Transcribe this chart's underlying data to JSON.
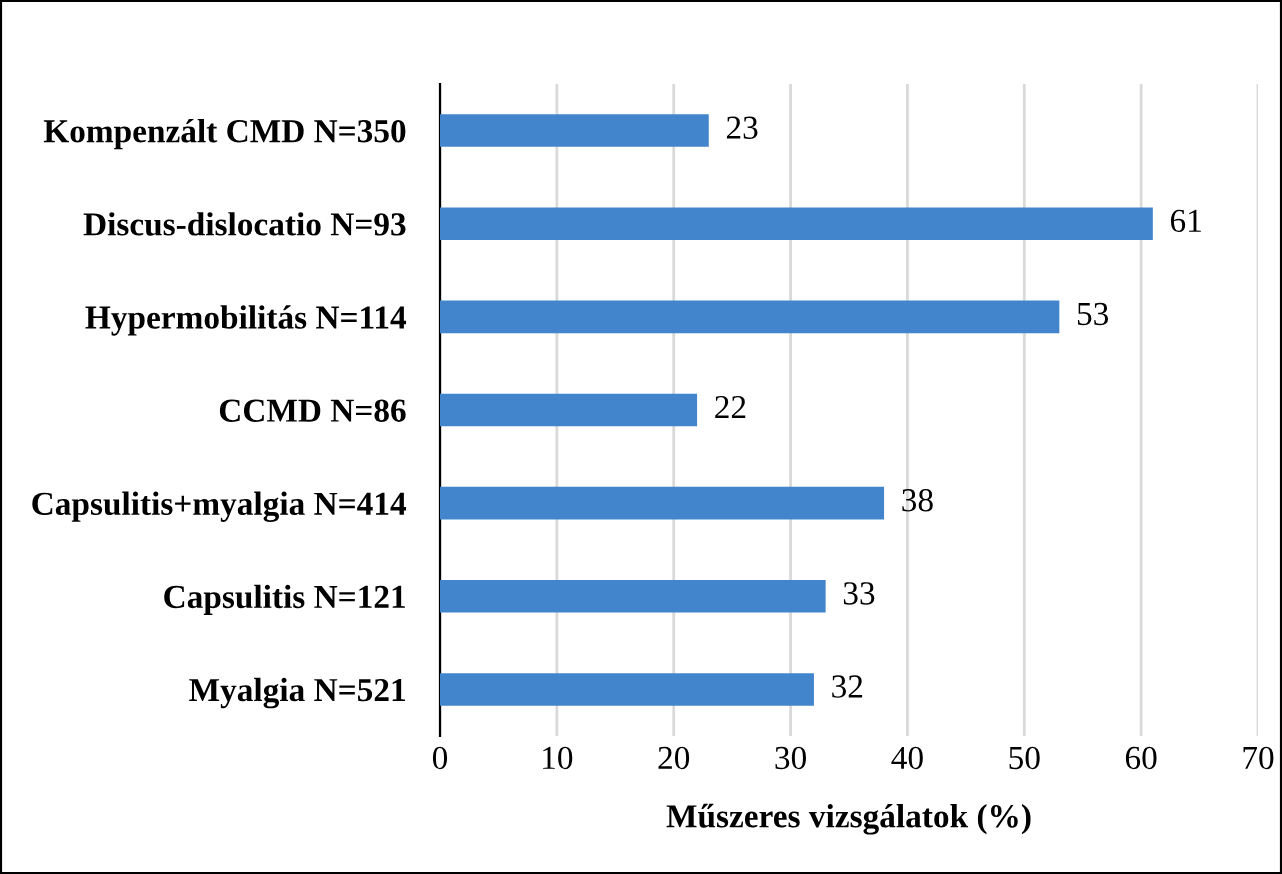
{
  "chart_data": {
    "type": "bar",
    "orientation": "horizontal",
    "xlabel": "Műszeres vizsgálatok (%)",
    "categories": [
      "Kompenzált CMD N=350",
      "Discus-dislocatio N=93",
      "Hypermobilitás N=114",
      "CCMD N=86",
      "Capsulitis+myalgia N=414",
      "Capsulitis N=121",
      "Myalgia N=521"
    ],
    "values": [
      23,
      61,
      53,
      22,
      38,
      33,
      32
    ],
    "color": "#4285cc",
    "xlim": [
      0,
      70
    ],
    "xticks": [
      0,
      10,
      20,
      30,
      40,
      50,
      60,
      70
    ],
    "grid": "x",
    "data_labels": true,
    "legend": false
  }
}
